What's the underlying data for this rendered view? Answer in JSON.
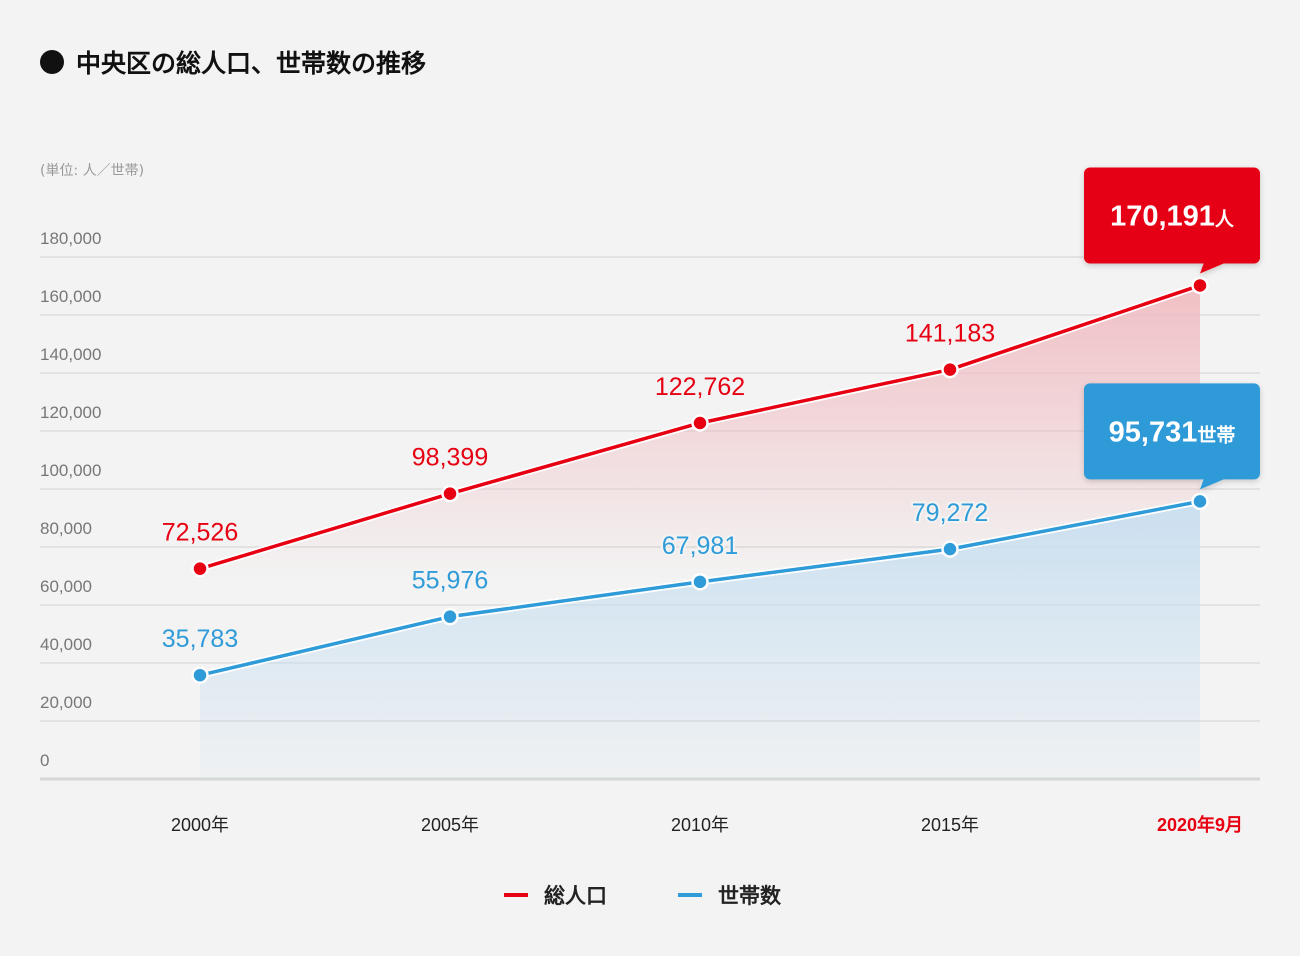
{
  "title": "中央区の総人口、世帯数の推移",
  "unit_label": "(単位: 人／世帯)",
  "colors": {
    "population": "#e60012",
    "households": "#2f9bd8",
    "highlight_x": "#e60012"
  },
  "chart_data": {
    "type": "line",
    "title": "中央区の総人口、世帯数の推移",
    "xlabel": "",
    "ylabel": "(単位: 人／世帯)",
    "categories": [
      "2000年",
      "2005年",
      "2010年",
      "2015年",
      "2020年9月"
    ],
    "y_ticks": [
      "0",
      "20,000",
      "40,000",
      "60,000",
      "80,000",
      "100,000",
      "120,000",
      "140,000",
      "160,000",
      "180,000"
    ],
    "ylim": [
      0,
      180000
    ],
    "grid": true,
    "legend_position": "bottom-center",
    "series": [
      {
        "name": "総人口",
        "values": [
          72526,
          98399,
          122762,
          141183,
          170191
        ],
        "labels": [
          "72,526",
          "98,399",
          "122,762",
          "141,183",
          "170,191"
        ],
        "callout_unit": "人"
      },
      {
        "name": "世帯数",
        "values": [
          35783,
          55976,
          67981,
          79272,
          95731
        ],
        "labels": [
          "35,783",
          "55,976",
          "67,981",
          "79,272",
          "95,731"
        ],
        "callout_unit": "世帯"
      }
    ]
  }
}
